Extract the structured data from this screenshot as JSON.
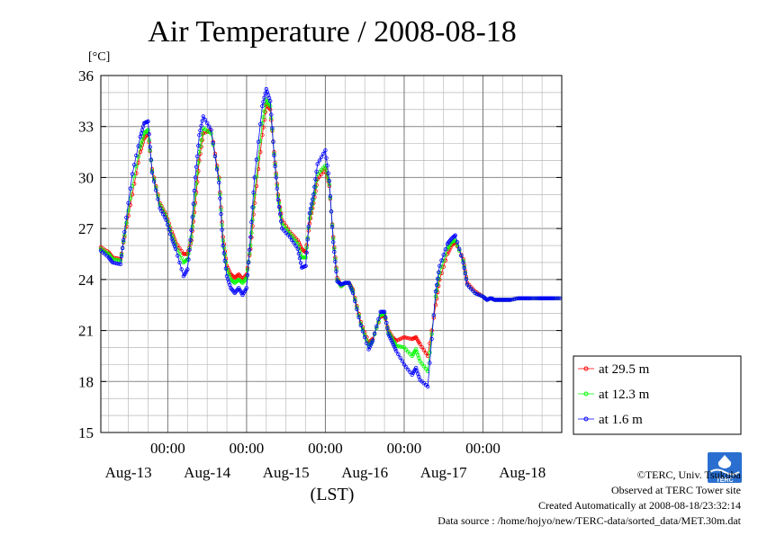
{
  "chart_data": {
    "type": "line",
    "title": "Air Temperature / 2008-08-18",
    "ylabel": "[°C]",
    "xlabel": "(LST)",
    "ylim": [
      15,
      36
    ],
    "yticks": [
      15,
      18,
      21,
      24,
      27,
      30,
      33,
      36
    ],
    "xlim": [
      -0.85,
      5.0
    ],
    "grid": true,
    "legend_position": "right",
    "time_tick_label": "00:00",
    "date_labels": [
      "Aug-13",
      "Aug-14",
      "Aug-15",
      "Aug-16",
      "Aug-17",
      "Aug-18"
    ],
    "x_unit": "days relative to 2008-08-13 00:00 LST",
    "series": [
      {
        "name": "at 29.5 m",
        "color": "#ff0000",
        "x": [
          -0.85,
          -0.75,
          -0.7,
          -0.6,
          -0.55,
          -0.45,
          -0.35,
          -0.3,
          -0.25,
          -0.2,
          -0.1,
          -0.02,
          0.05,
          0.1,
          0.2,
          0.25,
          0.3,
          0.35,
          0.4,
          0.45,
          0.55,
          0.65,
          0.7,
          0.75,
          0.8,
          0.85,
          0.9,
          0.95,
          1.0,
          1.05,
          1.1,
          1.2,
          1.25,
          1.3,
          1.35,
          1.4,
          1.45,
          1.55,
          1.65,
          1.7,
          1.75,
          1.8,
          1.85,
          1.9,
          2.0,
          2.05,
          2.1,
          2.15,
          2.2,
          2.25,
          2.3,
          2.35,
          2.45,
          2.55,
          2.6,
          2.7,
          2.75,
          2.8,
          2.85,
          2.9,
          3.0,
          3.1,
          3.15,
          3.2,
          3.3,
          3.4,
          3.45,
          3.55,
          3.6,
          3.65,
          3.75,
          3.8,
          3.9,
          4.0,
          4.05,
          4.1,
          4.15,
          4.2,
          4.25,
          4.3,
          4.35,
          4.45,
          4.5,
          4.55,
          4.6,
          4.7,
          4.75,
          4.8,
          4.85,
          4.9,
          5.0
        ],
        "y": [
          25.9,
          25.6,
          25.3,
          25.2,
          26.5,
          29.0,
          31.5,
          32.3,
          32.6,
          30.5,
          28.5,
          27.8,
          26.8,
          26.2,
          25.5,
          25.5,
          26.3,
          28.5,
          31.0,
          32.6,
          32.8,
          30.0,
          26.5,
          24.8,
          24.3,
          24.1,
          24.3,
          24.0,
          24.3,
          25.8,
          28.5,
          32.5,
          34.3,
          34.0,
          31.5,
          29.0,
          27.5,
          26.8,
          26.3,
          25.8,
          25.6,
          27.3,
          28.5,
          29.9,
          30.5,
          29.5,
          26.5,
          24.1,
          23.6,
          23.8,
          23.8,
          23.4,
          21.5,
          20.3,
          20.5,
          21.8,
          21.9,
          21.0,
          20.6,
          20.4,
          20.6,
          20.5,
          20.6,
          20.2,
          19.5,
          22.5,
          24.0,
          25.5,
          26.0,
          26.2,
          25.2,
          23.8,
          23.3,
          23.0,
          22.8,
          22.9,
          22.8,
          22.8,
          22.8,
          22.8,
          22.8,
          22.9,
          22.9,
          22.9,
          22.9,
          22.9,
          22.9,
          22.9,
          22.9,
          22.9,
          22.9
        ]
      },
      {
        "name": "at 12.3 m",
        "color": "#00ff00",
        "x": [
          -0.85,
          -0.75,
          -0.7,
          -0.6,
          -0.55,
          -0.45,
          -0.35,
          -0.3,
          -0.25,
          -0.2,
          -0.1,
          -0.02,
          0.05,
          0.1,
          0.2,
          0.25,
          0.3,
          0.35,
          0.4,
          0.45,
          0.55,
          0.65,
          0.7,
          0.75,
          0.8,
          0.85,
          0.9,
          0.95,
          1.0,
          1.05,
          1.1,
          1.2,
          1.25,
          1.3,
          1.35,
          1.4,
          1.45,
          1.55,
          1.65,
          1.7,
          1.75,
          1.8,
          1.85,
          1.9,
          2.0,
          2.05,
          2.1,
          2.15,
          2.2,
          2.25,
          2.3,
          2.35,
          2.45,
          2.55,
          2.6,
          2.7,
          2.75,
          2.8,
          2.85,
          2.9,
          3.0,
          3.1,
          3.15,
          3.2,
          3.3,
          3.4,
          3.45,
          3.55,
          3.6,
          3.65,
          3.75,
          3.8,
          3.9,
          4.0,
          4.05,
          4.1,
          4.15,
          4.2,
          4.25,
          4.3,
          4.35,
          4.45,
          4.5,
          4.55,
          4.6,
          4.7,
          4.75,
          4.8,
          4.85,
          4.9,
          5.0
        ],
        "y": [
          25.8,
          25.5,
          25.2,
          25.1,
          26.6,
          29.5,
          31.8,
          32.6,
          32.8,
          30.4,
          28.4,
          27.7,
          26.6,
          26.0,
          25.0,
          25.2,
          26.5,
          29.0,
          31.5,
          32.9,
          32.6,
          29.9,
          26.3,
          24.6,
          24.0,
          23.8,
          24.0,
          23.8,
          24.1,
          26.0,
          29.0,
          33.2,
          34.6,
          34.2,
          31.4,
          28.9,
          27.3,
          26.7,
          26.1,
          25.3,
          25.3,
          27.6,
          28.7,
          30.2,
          30.7,
          29.6,
          26.4,
          24.0,
          23.6,
          23.8,
          23.8,
          23.3,
          21.4,
          20.1,
          20.4,
          21.9,
          22.0,
          20.9,
          20.5,
          20.1,
          20.0,
          19.5,
          19.9,
          19.2,
          18.6,
          23.0,
          24.4,
          25.8,
          26.2,
          26.3,
          25.1,
          23.7,
          23.2,
          23.0,
          22.8,
          22.9,
          22.8,
          22.8,
          22.8,
          22.8,
          22.8,
          22.9,
          22.9,
          22.9,
          22.9,
          22.9,
          22.9,
          22.9,
          22.9,
          22.9,
          22.9
        ]
      },
      {
        "name": "at 1.6 m",
        "color": "#0000ff",
        "x": [
          -0.85,
          -0.75,
          -0.7,
          -0.6,
          -0.55,
          -0.45,
          -0.35,
          -0.3,
          -0.25,
          -0.2,
          -0.1,
          -0.02,
          0.05,
          0.1,
          0.2,
          0.25,
          0.3,
          0.35,
          0.4,
          0.45,
          0.55,
          0.65,
          0.7,
          0.75,
          0.8,
          0.85,
          0.9,
          0.95,
          1.0,
          1.05,
          1.1,
          1.2,
          1.25,
          1.3,
          1.35,
          1.4,
          1.45,
          1.55,
          1.65,
          1.7,
          1.75,
          1.8,
          1.85,
          1.9,
          2.0,
          2.05,
          2.1,
          2.15,
          2.2,
          2.25,
          2.3,
          2.35,
          2.45,
          2.55,
          2.6,
          2.7,
          2.75,
          2.8,
          2.85,
          2.9,
          3.0,
          3.1,
          3.15,
          3.2,
          3.3,
          3.4,
          3.45,
          3.55,
          3.6,
          3.65,
          3.75,
          3.8,
          3.9,
          4.0,
          4.05,
          4.1,
          4.15,
          4.2,
          4.25,
          4.3,
          4.35,
          4.45,
          4.5,
          4.55,
          4.6,
          4.7,
          4.75,
          4.8,
          4.85,
          4.9,
          5.0
        ],
        "y": [
          25.7,
          25.3,
          25.0,
          24.9,
          26.8,
          30.2,
          32.4,
          33.2,
          33.3,
          30.3,
          28.2,
          27.5,
          26.4,
          25.8,
          24.2,
          24.6,
          26.9,
          30.0,
          32.5,
          33.6,
          32.8,
          29.7,
          26.0,
          24.2,
          23.5,
          23.2,
          23.5,
          23.1,
          23.5,
          26.5,
          30.0,
          34.2,
          35.2,
          34.5,
          31.3,
          28.7,
          27.0,
          26.5,
          25.8,
          24.7,
          24.8,
          27.9,
          29.0,
          30.8,
          31.6,
          29.8,
          26.2,
          23.9,
          23.7,
          23.8,
          23.8,
          23.2,
          21.3,
          19.9,
          20.4,
          22.1,
          22.1,
          20.8,
          20.3,
          19.8,
          19.0,
          18.4,
          18.8,
          18.1,
          17.7,
          23.3,
          24.8,
          26.1,
          26.4,
          26.6,
          25.0,
          23.7,
          23.2,
          23.0,
          22.8,
          22.9,
          22.8,
          22.8,
          22.8,
          22.8,
          22.8,
          22.9,
          22.9,
          22.9,
          22.9,
          22.9,
          22.9,
          22.9,
          22.9,
          22.9,
          22.9
        ]
      }
    ]
  },
  "footer": {
    "copyright": "©TERC, Univ. Tsukuba",
    "observed": "Observed at TERC Tower site",
    "created": "Created Automatically at 2008-08-18/23:32:14",
    "source": "Data source : /home/hojyo/new/TERC-data/sorted_data/MET.30m.dat"
  },
  "logo": {
    "text": "TERC"
  }
}
